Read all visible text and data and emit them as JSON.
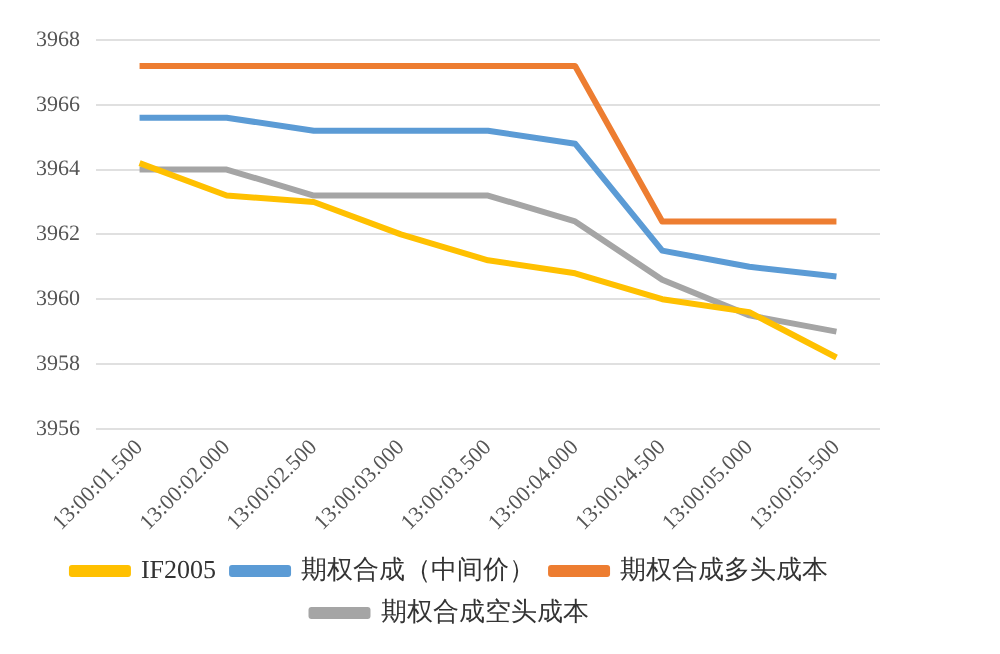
{
  "chart_data": {
    "type": "line",
    "categories": [
      "13:00:01.500",
      "13:00:02.000",
      "13:00:02.500",
      "13:00:03.000",
      "13:00:03.500",
      "13:00:04.000",
      "13:00:04.500",
      "13:00:05.000",
      "13:00:05.500"
    ],
    "series": [
      {
        "name": "IF2005",
        "color": "#ffc000",
        "values": [
          3964.2,
          3963.2,
          3963.0,
          3962.0,
          3961.2,
          3960.8,
          3960.0,
          3959.6,
          3958.2
        ]
      },
      {
        "name": "期权合成（中间价）",
        "color": "#5b9bd5",
        "values": [
          3965.6,
          3965.6,
          3965.2,
          3965.2,
          3965.2,
          3964.8,
          3961.5,
          3961.0,
          3960.7
        ]
      },
      {
        "name": "期权合成多头成本",
        "color": "#ed7d31",
        "values": [
          3967.2,
          3967.2,
          3967.2,
          3967.2,
          3967.2,
          3967.2,
          3962.4,
          3962.4,
          3962.4
        ]
      },
      {
        "name": "期权合成空头成本",
        "color": "#a5a5a5",
        "values": [
          3964.0,
          3964.0,
          3963.2,
          3963.2,
          3963.2,
          3962.4,
          3960.6,
          3959.5,
          3959.0
        ]
      }
    ],
    "ylim": [
      3956,
      3968
    ],
    "yticks": [
      3956,
      3958,
      3960,
      3962,
      3964,
      3966,
      3968
    ],
    "grid": "y",
    "legend": "bottom",
    "marker": "none",
    "line_style": "solid"
  }
}
